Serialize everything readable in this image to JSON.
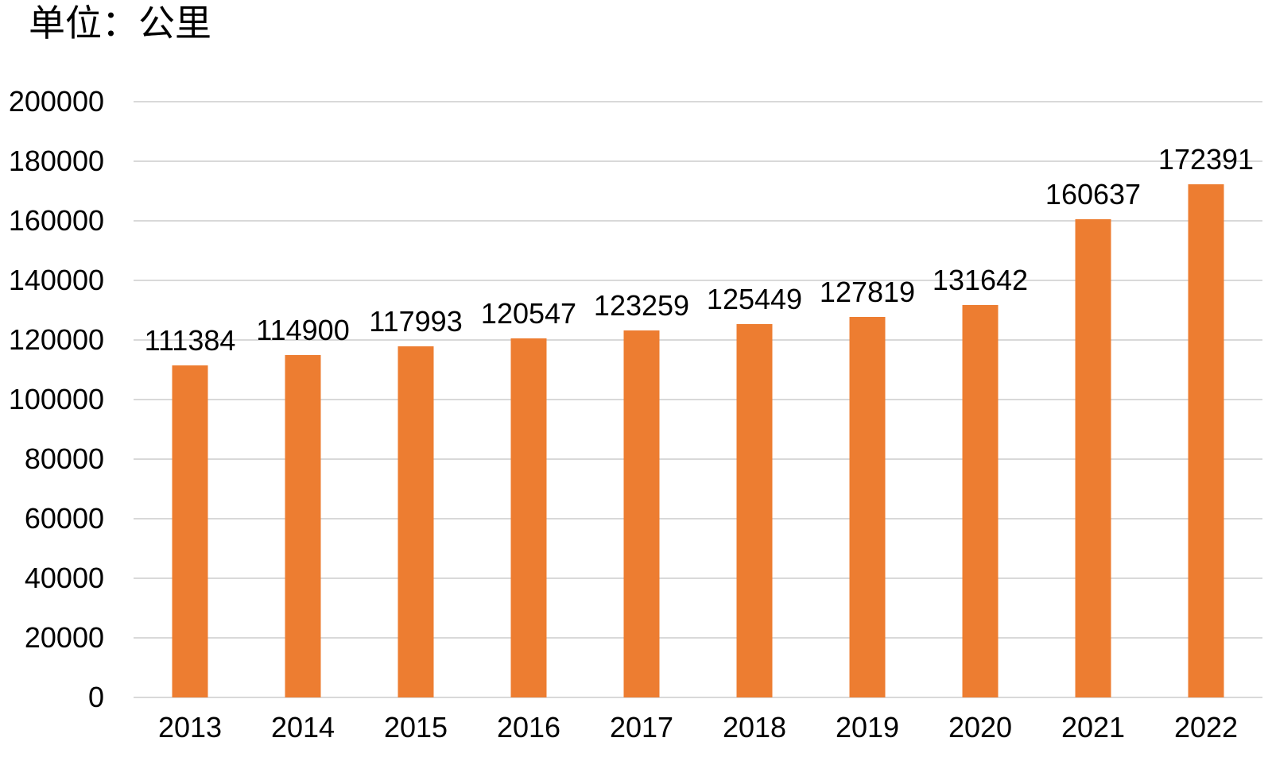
{
  "unit_label": "单位：公里",
  "chart_data": {
    "type": "bar",
    "title": "单位：公里",
    "categories": [
      "2013",
      "2014",
      "2015",
      "2016",
      "2017",
      "2018",
      "2019",
      "2020",
      "2021",
      "2022"
    ],
    "values": [
      111384,
      114900,
      117993,
      120547,
      123259,
      125449,
      127819,
      131642,
      160637,
      172391
    ],
    "xlabel": "",
    "ylabel": "",
    "ylim": [
      0,
      200000
    ],
    "yticks": [
      0,
      20000,
      40000,
      60000,
      80000,
      100000,
      120000,
      140000,
      160000,
      180000,
      200000
    ],
    "grid": true,
    "legend": false,
    "bar_color": "#ED7D31",
    "gridline_color": "#D9D9D9",
    "text_color": "#000000",
    "background_color": "#FFFFFF"
  }
}
